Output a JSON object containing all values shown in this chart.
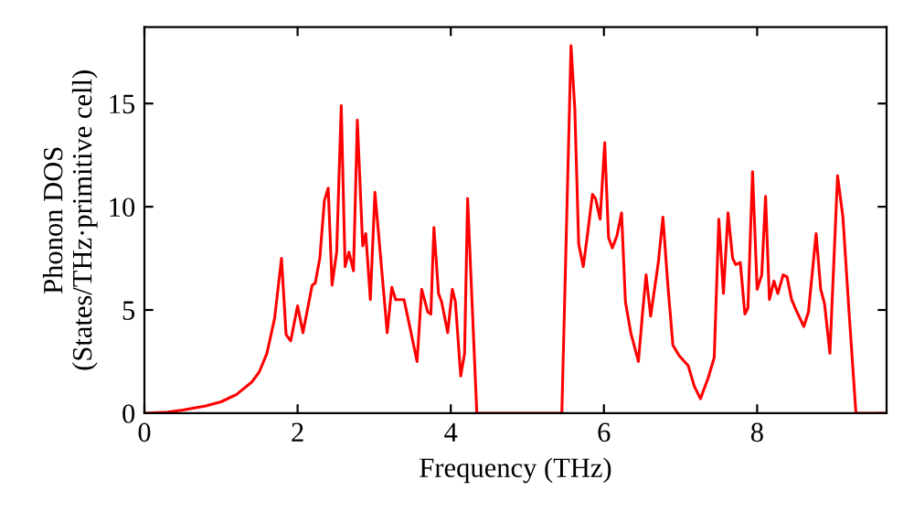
{
  "chart_data": {
    "type": "line",
    "xlabel": "Frequency (THz)",
    "ylabel": "Phonon DOS\n(States/THz·primitive cell)",
    "xlim": [
      0,
      9.69
    ],
    "ylim": [
      0,
      18.7
    ],
    "xticks": [
      0,
      2,
      4,
      6,
      8
    ],
    "yticks": [
      0,
      5,
      10,
      15
    ],
    "grid": false,
    "marker": "none",
    "line_style": "solid",
    "series": [
      {
        "color": "#ff0000",
        "x": [
          0,
          0.3,
          0.5,
          0.8,
          1.0,
          1.2,
          1.4,
          1.5,
          1.6,
          1.7,
          1.79,
          1.85,
          1.91,
          2.0,
          2.07,
          2.19,
          2.23,
          2.29,
          2.35,
          2.4,
          2.45,
          2.51,
          2.57,
          2.62,
          2.67,
          2.73,
          2.78,
          2.85,
          2.89,
          2.95,
          3.01,
          3.09,
          3.17,
          3.23,
          3.28,
          3.39,
          3.47,
          3.56,
          3.62,
          3.7,
          3.74,
          3.78,
          3.84,
          3.88,
          3.96,
          4.02,
          4.06,
          4.13,
          4.18,
          4.22,
          4.34,
          5.45,
          5.57,
          5.62,
          5.67,
          5.73,
          5.79,
          5.85,
          5.89,
          5.95,
          6.01,
          6.06,
          6.11,
          6.17,
          6.23,
          6.28,
          6.35,
          6.45,
          6.5,
          6.55,
          6.61,
          6.71,
          6.77,
          6.83,
          6.9,
          6.98,
          7.1,
          7.18,
          7.26,
          7.36,
          7.44,
          7.5,
          7.56,
          7.62,
          7.68,
          7.72,
          7.78,
          7.84,
          7.88,
          7.94,
          8.0,
          8.06,
          8.11,
          8.16,
          8.22,
          8.27,
          8.34,
          8.39,
          8.45,
          8.52,
          8.61,
          8.67,
          8.77,
          8.83,
          8.88,
          8.95,
          9.05,
          9.12,
          9.2,
          9.29,
          9.69
        ],
        "values": [
          0,
          0.05,
          0.15,
          0.35,
          0.55,
          0.9,
          1.5,
          2.0,
          2.9,
          4.6,
          7.5,
          3.8,
          3.5,
          5.2,
          3.9,
          6.2,
          6.3,
          7.5,
          10.3,
          10.9,
          6.2,
          7.8,
          14.9,
          7.1,
          7.8,
          6.9,
          14.2,
          8.1,
          8.7,
          5.5,
          10.7,
          7.3,
          3.9,
          6.1,
          5.5,
          5.5,
          4.1,
          2.5,
          6.0,
          4.9,
          4.8,
          9.0,
          5.8,
          5.4,
          3.9,
          6.0,
          5.4,
          1.8,
          2.9,
          10.4,
          0,
          0,
          17.8,
          14.7,
          8.2,
          7.1,
          8.8,
          10.6,
          10.4,
          9.4,
          13.1,
          8.5,
          8.0,
          8.6,
          9.7,
          5.4,
          3.9,
          2.5,
          4.7,
          6.7,
          4.7,
          7.3,
          9.5,
          6.4,
          3.3,
          2.8,
          2.3,
          1.3,
          0.7,
          1.7,
          2.7,
          9.4,
          5.8,
          9.7,
          7.5,
          7.2,
          7.3,
          4.8,
          5.1,
          11.7,
          6.0,
          6.7,
          10.5,
          5.5,
          6.4,
          5.8,
          6.7,
          6.6,
          5.5,
          4.9,
          4.2,
          4.9,
          8.7,
          6.0,
          5.3,
          2.9,
          11.5,
          9.5,
          4.9,
          0,
          0
        ]
      }
    ]
  }
}
